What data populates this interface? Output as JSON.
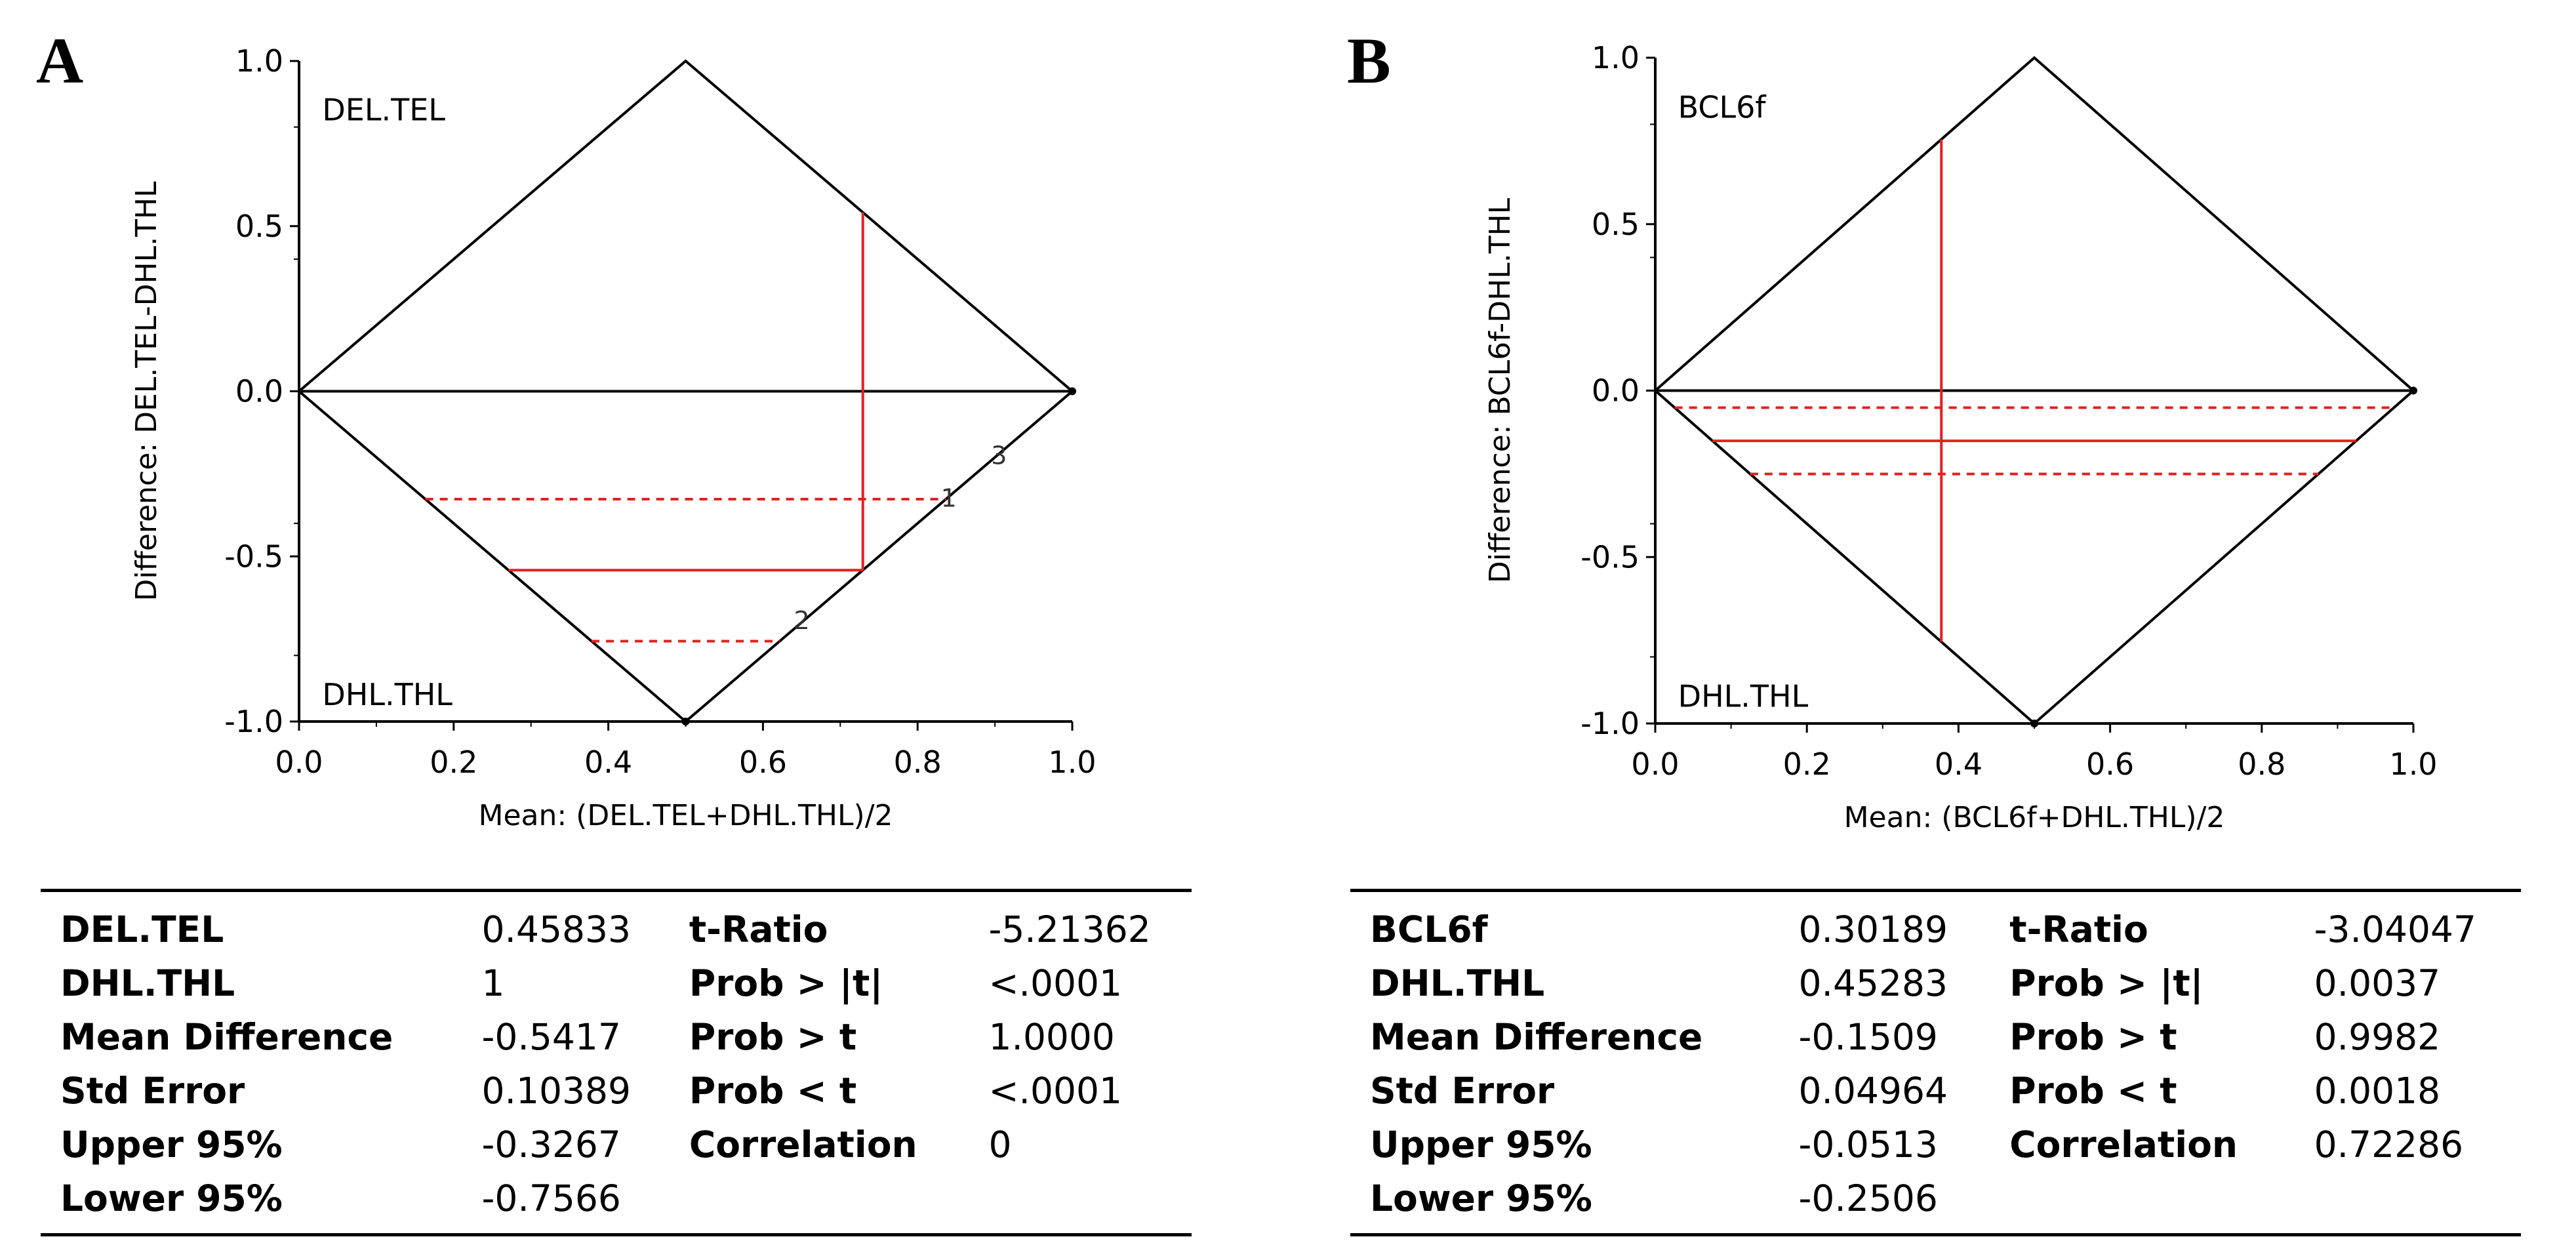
{
  "chart_data": [
    {
      "type": "scatter",
      "panel": "A",
      "xlabel": "Mean: (DEL.TEL+DHL.THL)/2",
      "ylabel": "Difference: DEL.TEL-DHL.THL",
      "xlim": [
        0.0,
        1.0
      ],
      "ylim": [
        -1.0,
        1.0
      ],
      "x_ticks": [
        "0.0",
        "0.2",
        "0.4",
        "0.6",
        "0.8",
        "1.0"
      ],
      "y_ticks": [
        "1.0",
        "0.5",
        "0.0",
        "-0.5",
        "-1.0"
      ],
      "top_corner_label": "DEL.TEL",
      "bottom_corner_label": "DHL.THL",
      "mean_x": 0.7292,
      "mean_difference": -0.5417,
      "upper_95": -0.3267,
      "lower_95": -0.7566,
      "reference_line_labels": [
        "3",
        "1",
        "2"
      ],
      "reference_line_colors": {
        "frame": "#000000",
        "mean": "#e32020"
      },
      "stats": [
        {
          "k1": "DEL.TEL",
          "v1": "0.45833",
          "k2": "t-Ratio",
          "v2": "-5.21362"
        },
        {
          "k1": "DHL.THL",
          "v1": "1",
          "k2": "Prob > |t|",
          "v2": "<.0001"
        },
        {
          "k1": "Mean Difference",
          "v1": "-0.5417",
          "k2": "Prob > t",
          "v2": "1.0000"
        },
        {
          "k1": "Std Error",
          "v1": "0.10389",
          "k2": "Prob < t",
          "v2": "<.0001"
        },
        {
          "k1": "Upper 95%",
          "v1": "-0.3267",
          "k2": "Correlation",
          "v2": "0"
        },
        {
          "k1": "Lower 95%",
          "v1": "-0.7566",
          "k2": "",
          "v2": ""
        }
      ]
    },
    {
      "type": "scatter",
      "panel": "B",
      "xlabel": "Mean: (BCL6f+DHL.THL)/2",
      "ylabel": "Difference: BCL6f-DHL.THL",
      "xlim": [
        0.0,
        1.0
      ],
      "ylim": [
        -1.0,
        1.0
      ],
      "x_ticks": [
        "0.0",
        "0.2",
        "0.4",
        "0.6",
        "0.8",
        "1.0"
      ],
      "y_ticks": [
        "1.0",
        "0.5",
        "0.0",
        "-0.5",
        "-1.0"
      ],
      "top_corner_label": "BCL6f",
      "bottom_corner_label": "DHL.THL",
      "mean_x": 0.3774,
      "mean_difference": -0.1509,
      "upper_95": -0.0513,
      "lower_95": -0.2506,
      "reference_line_labels": [],
      "reference_line_colors": {
        "frame": "#000000",
        "mean": "#e32020"
      },
      "stats": [
        {
          "k1": "BCL6f",
          "v1": "0.30189",
          "k2": "t-Ratio",
          "v2": "-3.04047"
        },
        {
          "k1": "DHL.THL",
          "v1": "0.45283",
          "k2": "Prob > |t|",
          "v2": "0.0037"
        },
        {
          "k1": "Mean Difference",
          "v1": "-0.1509",
          "k2": "Prob > t",
          "v2": "0.9982"
        },
        {
          "k1": "Std Error",
          "v1": "0.04964",
          "k2": "Prob < t",
          "v2": "0.0018"
        },
        {
          "k1": "Upper 95%",
          "v1": "-0.0513",
          "k2": "Correlation",
          "v2": "0.72286"
        },
        {
          "k1": "Lower 95%",
          "v1": "-0.2506",
          "k2": "",
          "v2": ""
        }
      ]
    }
  ],
  "panels": [
    {
      "letter": "A"
    },
    {
      "letter": "B"
    }
  ]
}
